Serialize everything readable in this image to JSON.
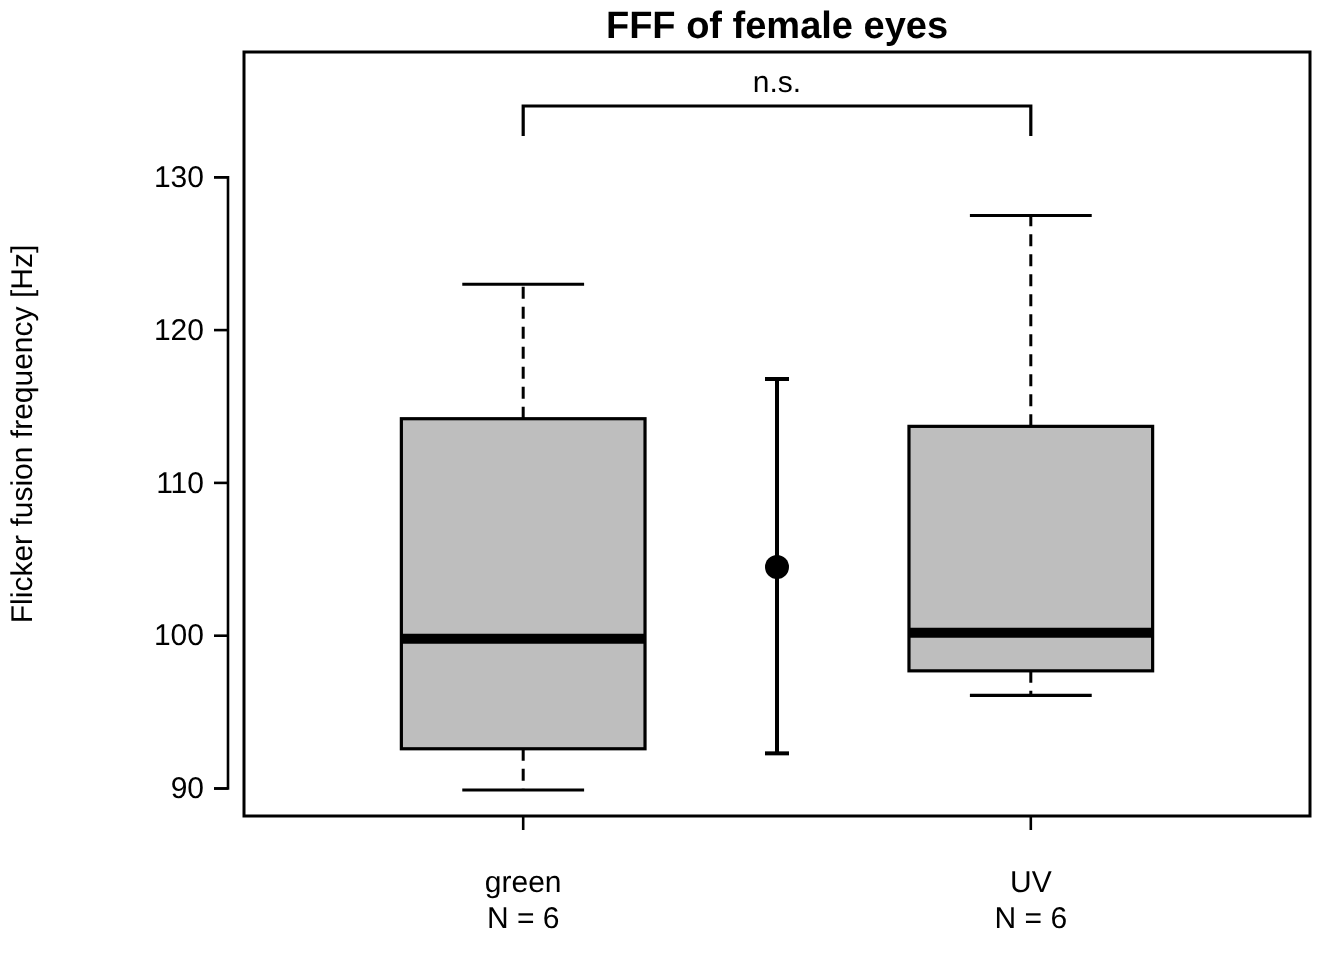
{
  "chart_data": {
    "type": "box",
    "title": "FFF of female eyes",
    "ylabel": "Flicker fusion frequency [Hz]",
    "categories": [
      "green\nN = 6",
      null,
      "UV\nN = 6"
    ],
    "boxes": [
      {
        "low": 89.9,
        "q1": 92.6,
        "median": 99.8,
        "q3": 114.2,
        "high": 123.0
      },
      null,
      {
        "low": 96.1,
        "q1": 97.7,
        "median": 100.2,
        "q3": 113.7,
        "high": 127.5
      }
    ],
    "colors": [
      "#bebebe",
      null,
      "#bebebe"
    ],
    "series": [
      {
        "type": "scatter",
        "color": "#000000",
        "values": [
          null,
          104.5,
          null
        ],
        "errors": [
          null,
          [
            92.3,
            116.8
          ],
          null
        ]
      }
    ],
    "ylim": [
      88.2,
      138.2
    ],
    "yticks": [
      90,
      100,
      110,
      120,
      130
    ],
    "annotations": [
      "n.s."
    ],
    "grid": false,
    "marker": "circle"
  }
}
